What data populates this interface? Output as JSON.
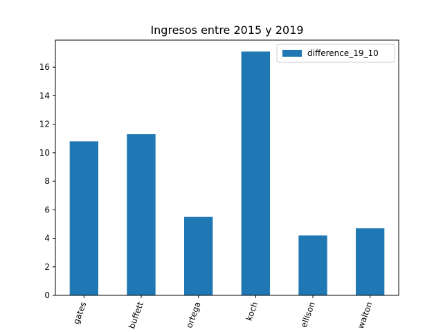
{
  "chart_data": {
    "type": "bar",
    "title": "Ingresos entre 2015 y 2019",
    "xlabel": "",
    "ylabel": "",
    "categories": [
      "gates",
      "buffett",
      "ortega",
      "koch",
      "ellison",
      "walton"
    ],
    "series": [
      {
        "name": "difference_19_10",
        "values": [
          10.8,
          11.3,
          5.5,
          17.1,
          4.2,
          4.7
        ],
        "color": "#1f77b4"
      }
    ],
    "ylim": [
      0,
      17.9
    ],
    "yticks": [
      0,
      2,
      4,
      6,
      8,
      10,
      12,
      14,
      16
    ],
    "grid": false,
    "legend_position": "top-right",
    "x_tick_rotation_deg": 70
  }
}
